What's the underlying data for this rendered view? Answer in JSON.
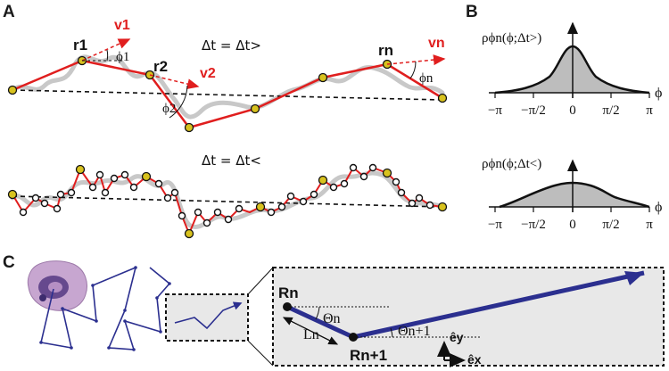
{
  "panels": {
    "a": "A",
    "b": "B",
    "c": "C"
  },
  "panel_a": {
    "eq_top": "Δt = Δt>",
    "eq_bottom": "Δt = Δt<",
    "r1": "r1",
    "r2": "r2",
    "rn": "rn",
    "v1": "v1",
    "v2": "v2",
    "vn": "vn",
    "phi1": "ϕ1",
    "phi2": "ϕ2",
    "phin": "ϕn"
  },
  "panel_b": {
    "ylabel_top": "ρϕn(ϕ;Δt>)",
    "ylabel_bottom": "ρϕn(ϕ;Δt<)",
    "xaxis_symbol": "ϕ",
    "ticks": [
      "−π",
      "−π/2",
      "0",
      "π/2",
      "π"
    ]
  },
  "panel_c": {
    "Rn": "Rn",
    "Rn1": "Rn+1",
    "Ln": "Ln",
    "Theta_n": "Θn",
    "Theta_n1": "Θn+1",
    "ey": "êy",
    "ex": "êx"
  },
  "colors": {
    "trajectory_red": "#e01e1e",
    "gray_path": "#c8c8c8",
    "node_yellow": "#d8c21e",
    "blue_path": "#2b2f8f",
    "zoom_bg": "#e8e8e8"
  }
}
